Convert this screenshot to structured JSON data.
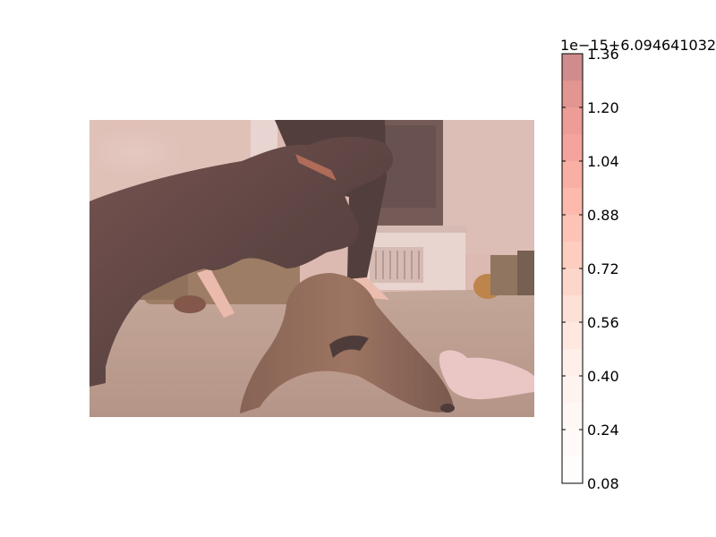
{
  "chart_data": {
    "type": "heatmap",
    "title": "",
    "description_of_image": "",
    "image_subject": "photo",
    "colormap": "Reds",
    "alpha": 0.5,
    "colorbar": {
      "offset_text": "1e−15+6.094641032",
      "vmin": 0.08,
      "vmax": 1.36,
      "ticks": [
        "0.08",
        "0.24",
        "0.40",
        "0.56",
        "0.72",
        "0.88",
        "1.04",
        "1.20",
        "1.36"
      ],
      "levels": [
        0.08,
        0.16,
        0.24,
        0.32,
        0.4,
        0.48,
        0.56,
        0.64,
        0.72,
        0.8,
        0.88,
        0.96,
        1.04,
        1.12,
        1.2,
        1.28,
        1.36
      ],
      "level_colors": [
        "#ffffff",
        "#fffbf9",
        "#fff6f2",
        "#fff0ea",
        "#ffe8df",
        "#fee0d3",
        "#fdd2c1",
        "#fcc1ad",
        "#fcae97",
        "#fc9b82",
        "#fb876d",
        "#f9735a",
        "#f45f4a",
        "#ec4a3b",
        "#dc3a2e",
        "#c62b24",
        "#a1191b"
      ]
    }
  }
}
